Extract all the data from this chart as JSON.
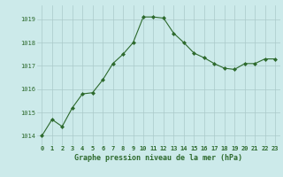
{
  "x": [
    0,
    1,
    2,
    3,
    4,
    5,
    6,
    7,
    8,
    9,
    10,
    11,
    12,
    13,
    14,
    15,
    16,
    17,
    18,
    19,
    20,
    21,
    22,
    23
  ],
  "y": [
    1014.0,
    1014.7,
    1014.4,
    1015.2,
    1015.8,
    1015.85,
    1016.4,
    1017.1,
    1017.5,
    1018.0,
    1019.1,
    1019.1,
    1019.05,
    1018.4,
    1018.0,
    1017.55,
    1017.35,
    1017.1,
    1016.9,
    1016.85,
    1017.1,
    1017.1,
    1017.3,
    1017.3
  ],
  "line_color": "#2d6a2d",
  "marker": "D",
  "marker_size": 2,
  "bg_color": "#cceaea",
  "grid_color": "#aacaca",
  "title": "Graphe pression niveau de la mer (hPa)",
  "label_color": "#2d6a2d",
  "ylim_min": 1013.6,
  "ylim_max": 1019.6,
  "yticks": [
    1014,
    1015,
    1016,
    1017,
    1018,
    1019
  ],
  "xticks": [
    0,
    1,
    2,
    3,
    4,
    5,
    6,
    7,
    8,
    9,
    10,
    11,
    12,
    13,
    14,
    15,
    16,
    17,
    18,
    19,
    20,
    21,
    22,
    23
  ],
  "tick_fontsize": 5,
  "title_fontsize": 6,
  "linewidth": 0.8
}
